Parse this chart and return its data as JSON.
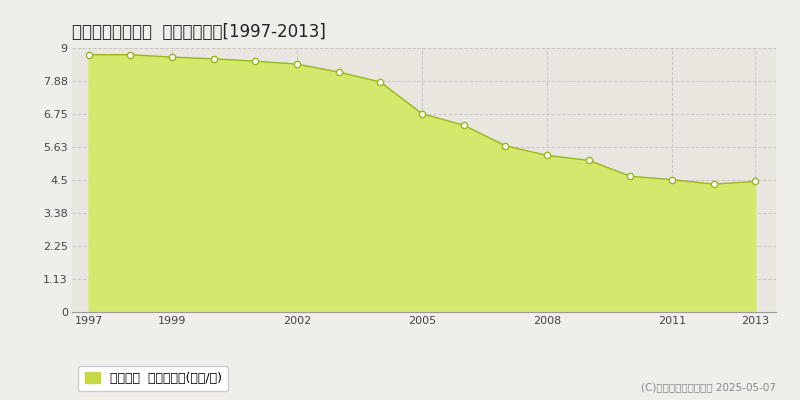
{
  "title": "いわき市平下荒川  公示地価推移[1997-2013]",
  "years": [
    1997,
    1998,
    1999,
    2000,
    2001,
    2002,
    2003,
    2004,
    2005,
    2006,
    2007,
    2008,
    2009,
    2010,
    2011,
    2012,
    2013
  ],
  "values": [
    8.77,
    8.77,
    8.69,
    8.63,
    8.55,
    8.45,
    8.18,
    7.84,
    6.76,
    6.37,
    5.67,
    5.34,
    5.17,
    4.63,
    4.51,
    4.36,
    4.45
  ],
  "ylim": [
    0,
    9
  ],
  "yticks": [
    0,
    1.13,
    2.25,
    3.38,
    4.5,
    5.63,
    6.75,
    7.88,
    9
  ],
  "ytick_labels": [
    "0",
    "1.13",
    "2.25",
    "3.38",
    "4.5",
    "5.63",
    "6.75",
    "7.88",
    "9"
  ],
  "xticks": [
    1997,
    1999,
    2002,
    2005,
    2008,
    2011,
    2013
  ],
  "fill_color": "#d4e96b",
  "line_color": "#9ab520",
  "marker_facecolor": "#ffffff",
  "marker_edgecolor": "#9ab520",
  "fig_bg_color": "#f0eeea",
  "plot_bg_color": "#e8e6de",
  "grid_color": "#c8c8c8",
  "legend_label": "公示地価  平均坤単価(万円/坤)",
  "legend_square_color": "#c8d840",
  "copyright_text": "(C)土地価格ドットコム 2025-05-07",
  "title_fontsize": 12,
  "tick_fontsize": 8,
  "legend_fontsize": 9
}
